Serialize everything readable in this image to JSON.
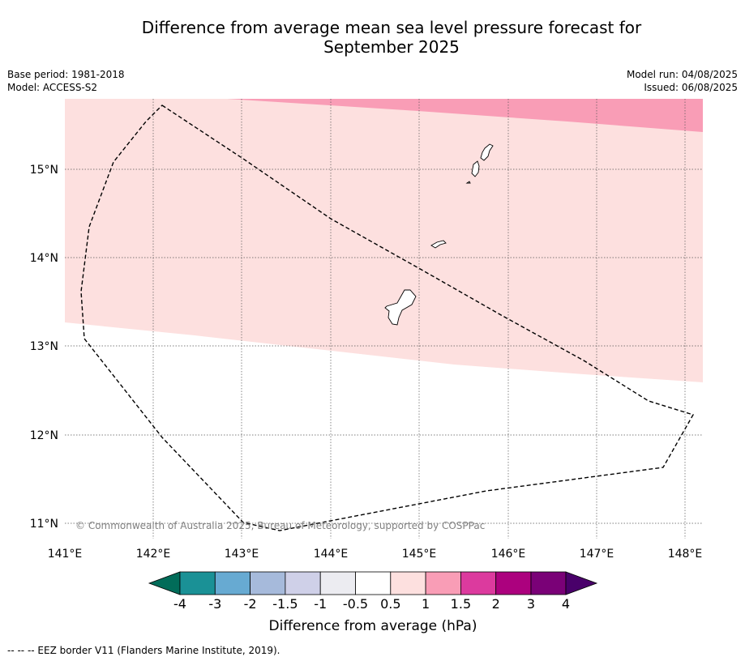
{
  "title": {
    "line1": "Difference from average mean sea level pressure forecast for",
    "line2": "September 2025"
  },
  "meta": {
    "base_period": "Base period: 1981-2018",
    "model": "Model: ACCESS-S2",
    "model_run": "Model run: 04/08/2025",
    "issued": "Issued: 06/08/2025"
  },
  "map": {
    "lon_range": [
      141.0,
      148.2
    ],
    "lat_range": [
      10.8,
      15.8
    ],
    "lon_ticks": [
      "141°E",
      "142°E",
      "143°E",
      "144°E",
      "145°E",
      "146°E",
      "147°E",
      "148°E"
    ],
    "lat_ticks": [
      "11°N",
      "12°N",
      "13°N",
      "14°N",
      "15°N"
    ],
    "copyright": "© Commonwealth of Australia 2025, Bureau of Meteorology, supported by COSPPac",
    "band_colors": {
      "0.5-1": "#fde0df",
      "1-1.5": "#f99db6"
    },
    "eez_border_color": "#000000"
  },
  "colorbar": {
    "label": "Difference from average (hPa)",
    "ticks": [
      "-4",
      "-3",
      "-2",
      "-1.5",
      "-1",
      "-0.5",
      "0.5",
      "1",
      "1.5",
      "2",
      "3",
      "4"
    ],
    "colors": [
      "#1a9196",
      "#67aad2",
      "#a6badb",
      "#cfd0e8",
      "#ececf1",
      "#ffffff",
      "#fde0df",
      "#f99db6",
      "#dc3a9e",
      "#ac017e",
      "#7a0177"
    ],
    "low_extend_color": "#016c59",
    "high_extend_color": "#49006a"
  },
  "footer": "--  --  -- EEZ border V11 (Flanders Marine Institute, 2019)."
}
